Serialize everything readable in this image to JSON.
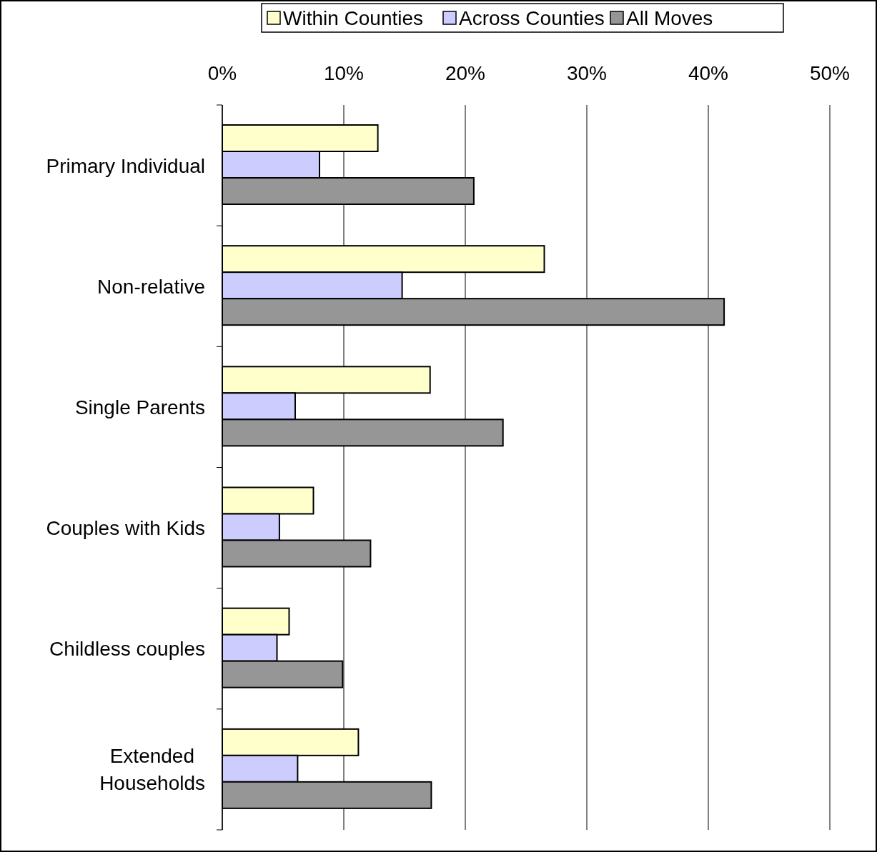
{
  "chart_data": {
    "type": "bar",
    "orientation": "horizontal",
    "categories": [
      "Primary Individual",
      "Non-relative",
      "Single Parents",
      "Couples with Kids",
      "Childless couples",
      "Extended\nHouseholds"
    ],
    "series": [
      {
        "name": "Within Counties",
        "color": "#ffffcc",
        "values": [
          12.8,
          26.5,
          17.1,
          7.5,
          5.5,
          11.2
        ]
      },
      {
        "name": "Across Counties",
        "color": "#ccccff",
        "values": [
          8.0,
          14.8,
          6.0,
          4.7,
          4.5,
          6.2
        ]
      },
      {
        "name": "All Moves",
        "color": "#969696",
        "values": [
          20.7,
          41.3,
          23.1,
          12.2,
          9.9,
          17.2
        ]
      }
    ],
    "xlim": [
      0,
      50
    ],
    "xticks": [
      {
        "value": 0,
        "label": "0%"
      },
      {
        "value": 10,
        "label": "10%"
      },
      {
        "value": 20,
        "label": "20%"
      },
      {
        "value": 30,
        "label": "30%"
      },
      {
        "value": 40,
        "label": "40%"
      },
      {
        "value": 50,
        "label": "50%"
      }
    ],
    "grid": "x",
    "legend": "top"
  }
}
